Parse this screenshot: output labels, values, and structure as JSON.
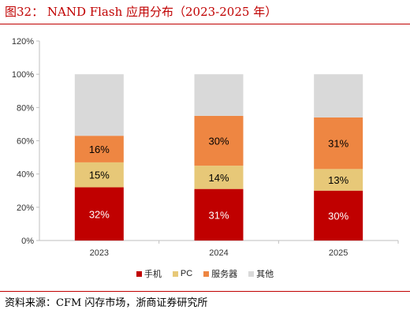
{
  "figure": {
    "title": "图32： NAND Flash 应用分布（2023-2025 年）",
    "source": "资料来源：CFM 闪存市场，浙商证券研究所"
  },
  "chart_data": {
    "type": "bar",
    "stacked": true,
    "categories": [
      "2023",
      "2024",
      "2025"
    ],
    "series": [
      {
        "name": "手机",
        "color": "#c00000",
        "values": [
          32,
          31,
          30
        ],
        "labels": [
          "32%",
          "31%",
          "30%"
        ],
        "label_color": "#ffffff"
      },
      {
        "name": "PC",
        "color": "#e7c878",
        "values": [
          15,
          14,
          13
        ],
        "labels": [
          "15%",
          "14%",
          "13%"
        ],
        "label_color": "#000000"
      },
      {
        "name": "服务器",
        "color": "#ee8642",
        "values": [
          16,
          30,
          31
        ],
        "labels": [
          "16%",
          "30%",
          "31%"
        ],
        "label_color": "#000000"
      },
      {
        "name": "其他",
        "color": "#d9d9d9",
        "values": [
          37,
          25,
          26
        ],
        "labels": [
          "",
          "",
          ""
        ],
        "label_color": "#000000"
      }
    ],
    "y_ticks": [
      "0%",
      "20%",
      "40%",
      "60%",
      "80%",
      "100%",
      "120%"
    ],
    "ylim": [
      0,
      120
    ],
    "grid": false,
    "legend_position": "bottom"
  }
}
